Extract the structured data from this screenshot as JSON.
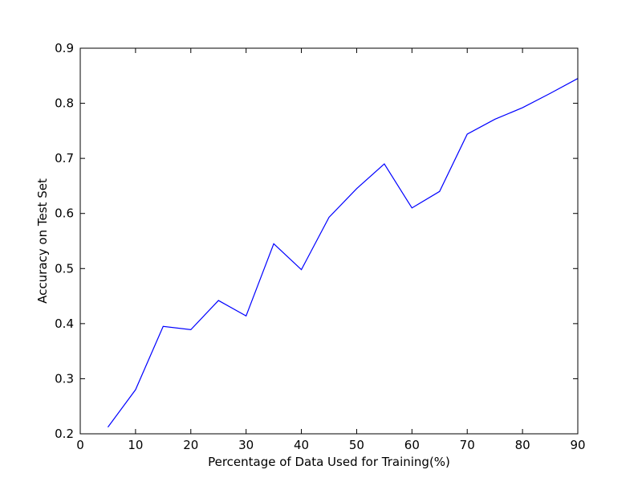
{
  "chart_data": {
    "type": "line",
    "title": "",
    "xlabel": "Percentage of Data Used for Training(%)",
    "ylabel": "Accuracy on Test Set",
    "xlim": [
      0,
      90
    ],
    "ylim": [
      0.2,
      0.9
    ],
    "xticks": [
      "0",
      "10",
      "20",
      "30",
      "40",
      "50",
      "60",
      "70",
      "80",
      "90"
    ],
    "yticks": [
      "0.2",
      "0.3",
      "0.4",
      "0.5",
      "0.6",
      "0.7",
      "0.8",
      "0.9"
    ],
    "grid": false,
    "line_color": "#0000ff",
    "series": [
      {
        "x": [
          5,
          10,
          15,
          20,
          25,
          30,
          35,
          40,
          45,
          50,
          55,
          60,
          65,
          70,
          75,
          80,
          85,
          90
        ],
        "values": [
          0.212,
          0.28,
          0.395,
          0.389,
          0.442,
          0.414,
          0.545,
          0.498,
          0.593,
          0.645,
          0.69,
          0.61,
          0.64,
          0.744,
          0.771,
          0.792,
          0.818,
          0.845
        ]
      }
    ]
  }
}
